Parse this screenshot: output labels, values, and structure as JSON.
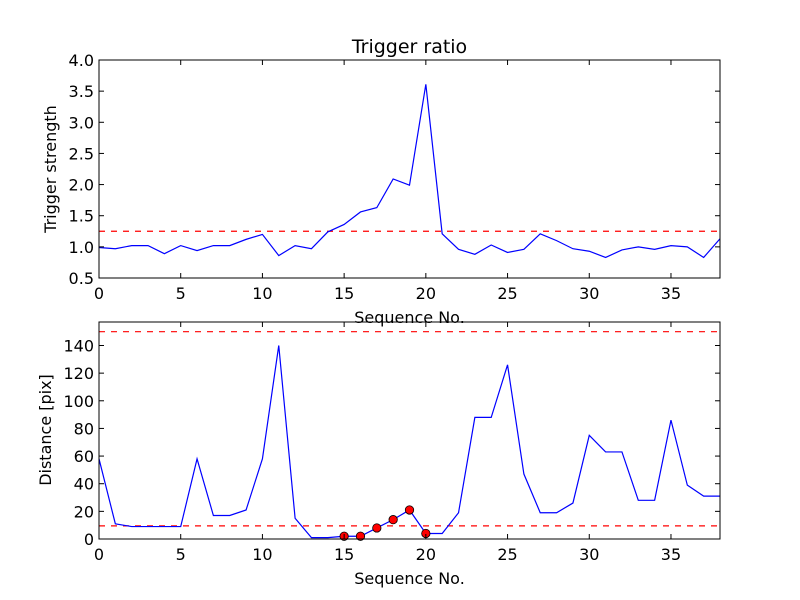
{
  "chart_data": [
    {
      "type": "line",
      "title": "Trigger ratio",
      "xlabel": "Sequence No.",
      "ylabel": "Trigger strength",
      "xlim": [
        0,
        38
      ],
      "ylim": [
        0.5,
        4.0
      ],
      "xticks": [
        "0",
        "5",
        "10",
        "15",
        "20",
        "25",
        "30",
        "35"
      ],
      "yticks": [
        "0.5",
        "1.0",
        "1.5",
        "2.0",
        "2.5",
        "3.0",
        "3.5",
        "4.0"
      ],
      "grid": false,
      "series": [
        {
          "color": "#0000ff",
          "x": [
            0,
            1,
            2,
            3,
            4,
            5,
            6,
            7,
            8,
            9,
            10,
            11,
            12,
            13,
            14,
            15,
            16,
            17,
            18,
            19,
            20,
            21,
            22,
            23,
            24,
            25,
            26,
            27,
            28,
            29,
            30,
            31,
            32,
            33,
            34,
            35,
            36,
            37,
            38
          ],
          "values": [
            0.99,
            0.97,
            1.02,
            1.02,
            0.89,
            1.02,
            0.94,
            1.02,
            1.02,
            1.12,
            1.2,
            0.86,
            1.02,
            0.97,
            1.24,
            1.36,
            1.56,
            1.63,
            2.09,
            1.99,
            3.61,
            1.21,
            0.96,
            0.88,
            1.03,
            0.91,
            0.96,
            1.21,
            1.1,
            0.97,
            0.93,
            0.83,
            0.95,
            1.0,
            0.96,
            1.02,
            1.0,
            0.83,
            1.13
          ]
        }
      ],
      "thresholds": [
        {
          "y": 1.25,
          "color": "#ff0000",
          "style": "dashed"
        }
      ]
    },
    {
      "type": "line",
      "title": "",
      "xlabel": "Sequence No.",
      "ylabel": "Distance [pix]",
      "xlim": [
        0,
        38
      ],
      "ylim": [
        0,
        157
      ],
      "xticks": [
        "0",
        "5",
        "10",
        "15",
        "20",
        "25",
        "30",
        "35"
      ],
      "yticks": [
        "0",
        "20",
        "40",
        "60",
        "80",
        "100",
        "120",
        "140"
      ],
      "grid": false,
      "series": [
        {
          "color": "#0000ff",
          "x": [
            0,
            1,
            2,
            3,
            4,
            5,
            6,
            7,
            8,
            9,
            10,
            11,
            12,
            13,
            14,
            15,
            16,
            17,
            18,
            19,
            20,
            21,
            22,
            23,
            24,
            25,
            26,
            27,
            28,
            29,
            30,
            31,
            32,
            33,
            34,
            35,
            36,
            37,
            38
          ],
          "values": [
            58,
            11,
            9,
            9,
            9,
            9,
            58,
            17,
            17,
            21,
            58,
            140,
            15,
            1,
            1,
            2,
            2,
            8,
            14,
            21,
            4,
            4,
            19,
            88,
            88,
            126,
            47,
            19,
            19,
            26,
            75,
            63,
            63,
            28,
            28,
            86,
            39,
            31,
            31
          ]
        }
      ],
      "markers": {
        "color": "#ff0000",
        "x": [
          15,
          16,
          17,
          18,
          19,
          20
        ],
        "values": [
          2,
          2,
          8,
          14,
          21,
          4
        ]
      },
      "thresholds": [
        {
          "y": 150,
          "color": "#ff0000",
          "style": "dashed"
        },
        {
          "y": 9.5,
          "color": "#ff0000",
          "style": "dashed"
        }
      ]
    }
  ]
}
